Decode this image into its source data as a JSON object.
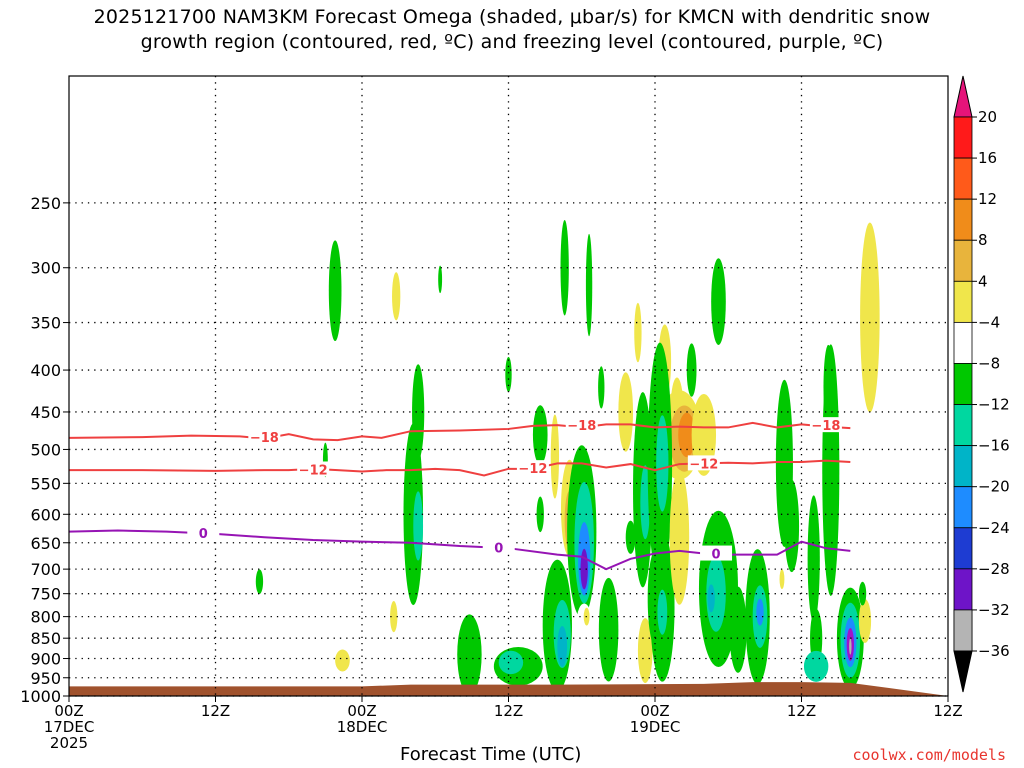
{
  "title": {
    "line1": "2025121700 NAM3KM Forecast Omega (shaded, μbar/s) for KMCN with dendritic snow",
    "line2": "growth region (contoured, red, ºC) and freezing level (contoured, purple, ºC)"
  },
  "credit": "coolwx.com/models",
  "chart_data": {
    "type": "heatmap",
    "xlabel": "Forecast Time (UTC)",
    "ylabel": "",
    "x_range_hours": [
      0,
      36
    ],
    "y_scale": "log-pressure",
    "ylim_hpa": [
      1000,
      175
    ],
    "y_ticks_hpa": [
      250,
      300,
      350,
      400,
      450,
      500,
      550,
      600,
      650,
      700,
      750,
      800,
      850,
      900,
      950,
      1000
    ],
    "x_ticks": [
      {
        "hour": 0,
        "lines": [
          "00Z",
          "17DEC",
          "2025"
        ]
      },
      {
        "hour": 6,
        "lines": [
          "12Z"
        ]
      },
      {
        "hour": 12,
        "lines": [
          "00Z",
          "18DEC"
        ]
      },
      {
        "hour": 18,
        "lines": [
          "12Z"
        ]
      },
      {
        "hour": 24,
        "lines": [
          "00Z",
          "19DEC"
        ]
      },
      {
        "hour": 30,
        "lines": [
          "12Z"
        ]
      }
    ],
    "x_end_label": "12Z",
    "colorbar": {
      "ticks": [
        "20",
        "16",
        "12",
        "8",
        "4",
        "−4",
        "−8",
        "−12",
        "−16",
        "−20",
        "−24",
        "−28",
        "−32",
        "−36"
      ],
      "colors": [
        "#ff1a1a",
        "#ff5a1a",
        "#f08c1a",
        "#e8b43c",
        "#f0e64b",
        "#ffffff",
        "#00c800",
        "#00d7a0",
        "#00b4c8",
        "#1e8cff",
        "#1e3cd2",
        "#6e14c8",
        "#a014c8",
        "#b4b4b4"
      ],
      "top_arrow_color": "#e6147a",
      "bottom_arrow_color": "#000000"
    },
    "contours": [
      {
        "label": "−18",
        "color": "#ef4040",
        "points": [
          [
            0,
            484
          ],
          [
            3,
            483
          ],
          [
            5,
            481
          ],
          [
            7,
            482
          ],
          [
            8,
            485
          ],
          [
            9,
            479
          ],
          [
            10,
            486
          ],
          [
            11,
            487
          ],
          [
            12,
            482
          ],
          [
            12.8,
            484
          ],
          [
            14,
            475
          ],
          [
            16,
            474
          ],
          [
            18,
            472
          ],
          [
            19,
            468
          ],
          [
            20,
            467
          ],
          [
            21,
            470
          ],
          [
            22,
            466
          ],
          [
            23,
            466
          ],
          [
            24,
            470
          ],
          [
            25,
            469
          ],
          [
            26,
            470
          ],
          [
            27,
            470
          ],
          [
            28,
            464
          ],
          [
            29,
            470
          ],
          [
            30,
            466
          ],
          [
            31,
            469
          ],
          [
            32,
            471
          ]
        ],
        "label_at": [
          [
            8,
            483
          ],
          [
            21,
            467
          ],
          [
            31,
            467
          ]
        ]
      },
      {
        "label": "−12",
        "color": "#ef4040",
        "points": [
          [
            0,
            530
          ],
          [
            3,
            530
          ],
          [
            6,
            531
          ],
          [
            8,
            530
          ],
          [
            9,
            530
          ],
          [
            10,
            528
          ],
          [
            11,
            530
          ],
          [
            12,
            532
          ],
          [
            13,
            530
          ],
          [
            14,
            530
          ],
          [
            15,
            528
          ],
          [
            16,
            530
          ],
          [
            17,
            538
          ],
          [
            18,
            528
          ],
          [
            19,
            528
          ],
          [
            20,
            520
          ],
          [
            21,
            520
          ],
          [
            22,
            526
          ],
          [
            23,
            521
          ],
          [
            24,
            530
          ],
          [
            25,
            521
          ],
          [
            26,
            520
          ],
          [
            27,
            519
          ],
          [
            28,
            520
          ],
          [
            29,
            518
          ],
          [
            30,
            518
          ],
          [
            31,
            516
          ],
          [
            32,
            518
          ]
        ],
        "label_at": [
          [
            10,
            529
          ],
          [
            19,
            527
          ],
          [
            26,
            520
          ]
        ]
      },
      {
        "label": "0",
        "color": "#9614b4",
        "points": [
          [
            0,
            630
          ],
          [
            2,
            628
          ],
          [
            4,
            630
          ],
          [
            6,
            634
          ],
          [
            8,
            640
          ],
          [
            10,
            645
          ],
          [
            12,
            648
          ],
          [
            14,
            650
          ],
          [
            16,
            656
          ],
          [
            18,
            660
          ],
          [
            20,
            672
          ],
          [
            21,
            676
          ],
          [
            22,
            700
          ],
          [
            23,
            680
          ],
          [
            24,
            670
          ],
          [
            25,
            665
          ],
          [
            26,
            670
          ],
          [
            27,
            672
          ],
          [
            28,
            672
          ],
          [
            29,
            672
          ],
          [
            30,
            648
          ],
          [
            31,
            660
          ],
          [
            32,
            665
          ]
        ],
        "label_at": [
          [
            5.5,
            632
          ],
          [
            17.6,
            659
          ],
          [
            26.5,
            670
          ]
        ]
      }
    ],
    "omega_cells": [
      {
        "x": 10.9,
        "p": 320,
        "rx": 0.26,
        "ry": 45,
        "value": -6
      },
      {
        "x": 13.4,
        "p": 325,
        "rx": 0.17,
        "ry": 22,
        "value": 5
      },
      {
        "x": 15.2,
        "p": 310,
        "rx": 0.08,
        "ry": 12,
        "value": -6
      },
      {
        "x": 18.0,
        "p": 405,
        "rx": 0.13,
        "ry": 20,
        "value": -6
      },
      {
        "x": 20.3,
        "p": 300,
        "rx": 0.17,
        "ry": 40,
        "value": -6
      },
      {
        "x": 21.3,
        "p": 315,
        "rx": 0.13,
        "ry": 45,
        "value": -6
      },
      {
        "x": 21.8,
        "p": 420,
        "rx": 0.13,
        "ry": 25,
        "value": -6
      },
      {
        "x": 24.9,
        "p": 445,
        "rx": 0.26,
        "ry": 38,
        "value": 5
      },
      {
        "x": 25.5,
        "p": 400,
        "rx": 0.2,
        "ry": 30,
        "value": -6
      },
      {
        "x": 24.4,
        "p": 390,
        "rx": 0.26,
        "ry": 40,
        "value": 5
      },
      {
        "x": 25.0,
        "p": 480,
        "rx": 0.9,
        "ry": 60,
        "value": 5
      },
      {
        "x": 25.2,
        "p": 485,
        "rx": 0.6,
        "ry": 45,
        "value": 9
      },
      {
        "x": 25.3,
        "p": 480,
        "rx": 0.35,
        "ry": 30,
        "value": 13
      },
      {
        "x": 26.0,
        "p": 480,
        "rx": 0.5,
        "ry": 55,
        "value": 5
      },
      {
        "x": 26.6,
        "p": 330,
        "rx": 0.3,
        "ry": 40,
        "value": -6
      },
      {
        "x": 23.3,
        "p": 360,
        "rx": 0.15,
        "ry": 30,
        "value": 5
      },
      {
        "x": 32.8,
        "p": 345,
        "rx": 0.4,
        "ry": 90,
        "value": 5
      },
      {
        "x": 14.1,
        "p": 600,
        "rx": 0.4,
        "ry": 150,
        "value": -6
      },
      {
        "x": 14.3,
        "p": 620,
        "rx": 0.2,
        "ry": 60,
        "value": -10
      },
      {
        "x": 10.5,
        "p": 515,
        "rx": 0.1,
        "ry": 25,
        "value": -6
      },
      {
        "x": 7.8,
        "p": 725,
        "rx": 0.15,
        "ry": 25,
        "value": -6
      },
      {
        "x": 13.3,
        "p": 800,
        "rx": 0.15,
        "ry": 35,
        "value": 5
      },
      {
        "x": 11.2,
        "p": 905,
        "rx": 0.3,
        "ry": 28,
        "value": 5
      },
      {
        "x": 16.4,
        "p": 890,
        "rx": 0.5,
        "ry": 100,
        "value": -6
      },
      {
        "x": 18.4,
        "p": 920,
        "rx": 1.0,
        "ry": 50,
        "value": -6
      },
      {
        "x": 18.1,
        "p": 910,
        "rx": 0.5,
        "ry": 30,
        "value": -10
      },
      {
        "x": 19.3,
        "p": 480,
        "rx": 0.3,
        "ry": 40,
        "value": -6
      },
      {
        "x": 19.3,
        "p": 600,
        "rx": 0.15,
        "ry": 30,
        "value": -6
      },
      {
        "x": 19.9,
        "p": 510,
        "rx": 0.17,
        "ry": 60,
        "value": 5
      },
      {
        "x": 20.5,
        "p": 590,
        "rx": 0.35,
        "ry": 80,
        "value": 5
      },
      {
        "x": 20.5,
        "p": 610,
        "rx": 0.2,
        "ry": 50,
        "value": 9
      },
      {
        "x": 21.0,
        "p": 630,
        "rx": 0.6,
        "ry": 150,
        "value": -6
      },
      {
        "x": 21.1,
        "p": 650,
        "rx": 0.4,
        "ry": 110,
        "value": -10
      },
      {
        "x": 21.1,
        "p": 680,
        "rx": 0.25,
        "ry": 70,
        "value": -16
      },
      {
        "x": 21.1,
        "p": 700,
        "rx": 0.15,
        "ry": 40,
        "value": -24
      },
      {
        "x": 20.0,
        "p": 820,
        "rx": 0.6,
        "ry": 150,
        "value": -6
      },
      {
        "x": 20.2,
        "p": 840,
        "rx": 0.35,
        "ry": 80,
        "value": -10
      },
      {
        "x": 20.2,
        "p": 870,
        "rx": 0.2,
        "ry": 50,
        "value": -14
      },
      {
        "x": 21.1,
        "p": 810,
        "rx": 0.3,
        "ry": 40,
        "value": 0
      },
      {
        "x": 21.2,
        "p": 800,
        "rx": 0.12,
        "ry": 20,
        "value": 5
      },
      {
        "x": 22.1,
        "p": 830,
        "rx": 0.4,
        "ry": 120,
        "value": -6
      },
      {
        "x": 22.8,
        "p": 450,
        "rx": 0.3,
        "ry": 50,
        "value": 5
      },
      {
        "x": 23.5,
        "p": 560,
        "rx": 0.4,
        "ry": 150,
        "value": -6
      },
      {
        "x": 23.6,
        "p": 580,
        "rx": 0.2,
        "ry": 60,
        "value": -10
      },
      {
        "x": 24.2,
        "p": 520,
        "rx": 0.5,
        "ry": 170,
        "value": -6
      },
      {
        "x": 24.3,
        "p": 520,
        "rx": 0.25,
        "ry": 70,
        "value": -10
      },
      {
        "x": 23.6,
        "p": 880,
        "rx": 0.3,
        "ry": 80,
        "value": 5
      },
      {
        "x": 24.0,
        "p": 760,
        "rx": 0.3,
        "ry": 100,
        "value": -6
      },
      {
        "x": 24.3,
        "p": 780,
        "rx": 0.5,
        "ry": 160,
        "value": -6
      },
      {
        "x": 24.3,
        "p": 790,
        "rx": 0.2,
        "ry": 50,
        "value": -10
      },
      {
        "x": 25.0,
        "p": 640,
        "rx": 0.4,
        "ry": 120,
        "value": 5
      },
      {
        "x": 26.6,
        "p": 740,
        "rx": 0.8,
        "ry": 160,
        "value": -6
      },
      {
        "x": 26.5,
        "p": 750,
        "rx": 0.4,
        "ry": 80,
        "value": -10
      },
      {
        "x": 26.3,
        "p": 760,
        "rx": 0.15,
        "ry": 30,
        "value": -14
      },
      {
        "x": 27.4,
        "p": 830,
        "rx": 0.35,
        "ry": 100,
        "value": -6
      },
      {
        "x": 28.2,
        "p": 800,
        "rx": 0.5,
        "ry": 150,
        "value": -6
      },
      {
        "x": 28.3,
        "p": 800,
        "rx": 0.3,
        "ry": 70,
        "value": -10
      },
      {
        "x": 28.3,
        "p": 790,
        "rx": 0.15,
        "ry": 30,
        "value": -16
      },
      {
        "x": 29.3,
        "p": 520,
        "rx": 0.35,
        "ry": 120,
        "value": -6
      },
      {
        "x": 29.6,
        "p": 620,
        "rx": 0.3,
        "ry": 80,
        "value": -6
      },
      {
        "x": 29.2,
        "p": 720,
        "rx": 0.1,
        "ry": 20,
        "value": 5
      },
      {
        "x": 30.6,
        "p": 850,
        "rx": 0.25,
        "ry": 70,
        "value": -6
      },
      {
        "x": 30.6,
        "p": 920,
        "rx": 0.5,
        "ry": 40,
        "value": -10
      },
      {
        "x": 30.5,
        "p": 680,
        "rx": 0.25,
        "ry": 120,
        "value": -6
      },
      {
        "x": 31.2,
        "p": 530,
        "rx": 0.35,
        "ry": 180,
        "value": -6
      },
      {
        "x": 31.1,
        "p": 420,
        "rx": 0.2,
        "ry": 50,
        "value": -6
      },
      {
        "x": 31.3,
        "p": 630,
        "rx": 0.15,
        "ry": 20,
        "value": -6
      },
      {
        "x": 32.0,
        "p": 850,
        "rx": 0.55,
        "ry": 120,
        "value": -6
      },
      {
        "x": 32.0,
        "p": 855,
        "rx": 0.4,
        "ry": 90,
        "value": -10
      },
      {
        "x": 32.0,
        "p": 860,
        "rx": 0.25,
        "ry": 60,
        "value": -16
      },
      {
        "x": 32.0,
        "p": 865,
        "rx": 0.15,
        "ry": 40,
        "value": -28
      },
      {
        "x": 32.0,
        "p": 870,
        "rx": 0.05,
        "ry": 20,
        "value": -32
      },
      {
        "x": 32.6,
        "p": 810,
        "rx": 0.25,
        "ry": 50,
        "value": 5
      },
      {
        "x": 32.5,
        "p": 750,
        "rx": 0.15,
        "ry": 25,
        "value": -6
      },
      {
        "x": 23.0,
        "p": 640,
        "rx": 0.2,
        "ry": 30,
        "value": -6
      },
      {
        "x": 14.3,
        "p": 450,
        "rx": 0.25,
        "ry": 60,
        "value": -6
      }
    ],
    "terrain": {
      "color": "#a0522d",
      "surface_hpa": [
        [
          0,
          990
        ],
        [
          12,
          990
        ],
        [
          14,
          985
        ],
        [
          20,
          985
        ],
        [
          26,
          983
        ],
        [
          28,
          978
        ],
        [
          30,
          978
        ],
        [
          32,
          980
        ]
      ]
    }
  }
}
